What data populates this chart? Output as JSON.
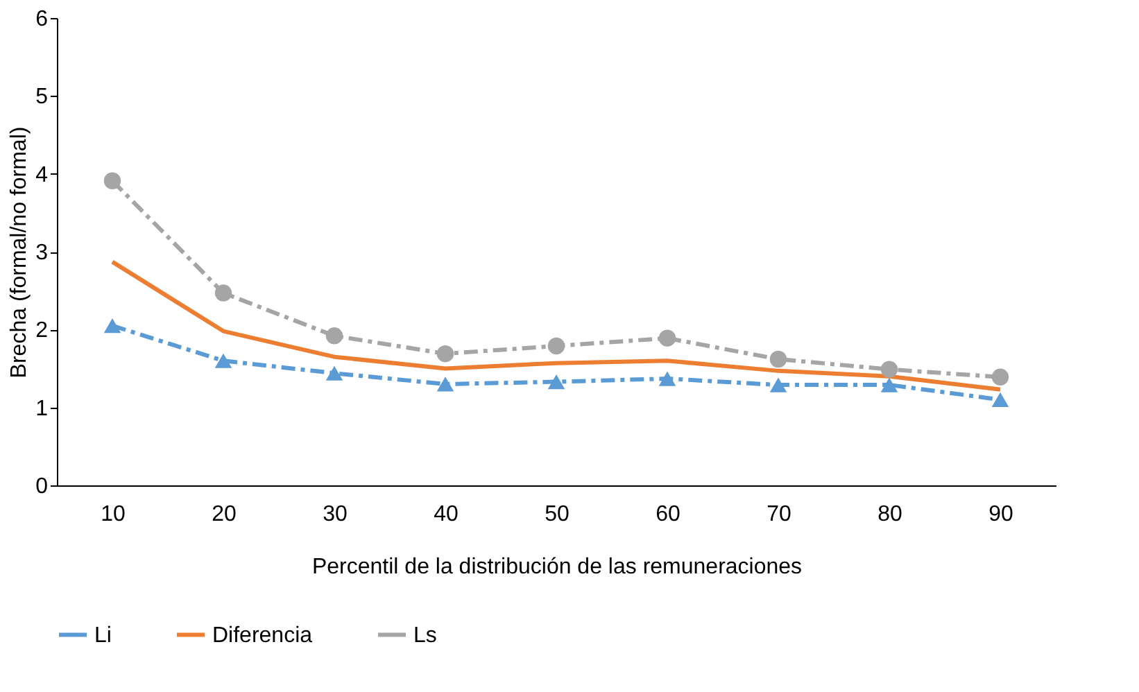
{
  "chart_data": {
    "type": "line",
    "xlabel": "Percentil de la distribución de las remuneraciones",
    "ylabel": "Brecha (formal/no formal)",
    "categories": [
      "10",
      "20",
      "30",
      "40",
      "50",
      "60",
      "70",
      "80",
      "90"
    ],
    "series": [
      {
        "name": "Li",
        "color": "#5b9bd5",
        "line_style": "dashed",
        "marker": "triangle",
        "values": [
          2.05,
          1.6,
          1.44,
          1.3,
          1.33,
          1.37,
          1.29,
          1.29,
          1.1
        ]
      },
      {
        "name": "Diferencia",
        "color": "#ed7d31",
        "line_style": "solid",
        "marker": "none",
        "values": [
          2.87,
          1.98,
          1.65,
          1.5,
          1.57,
          1.6,
          1.47,
          1.4,
          1.23
        ]
      },
      {
        "name": "Ls",
        "color": "#a5a5a5",
        "line_style": "dashed",
        "marker": "circle",
        "values": [
          3.91,
          2.47,
          1.92,
          1.69,
          1.79,
          1.89,
          1.62,
          1.49,
          1.39
        ]
      }
    ],
    "ylim": [
      0,
      6
    ],
    "yticks": [
      0,
      1,
      2,
      3,
      4,
      5,
      6
    ],
    "grid": false,
    "legend": "bottom"
  }
}
